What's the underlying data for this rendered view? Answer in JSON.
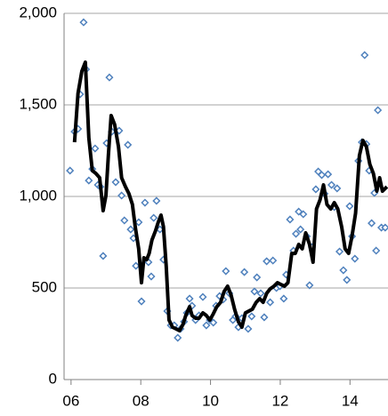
{
  "chart_data": {
    "type": "scatter",
    "xlim": [
      5.8,
      15.09
    ],
    "xticks": [
      {
        "value": 6,
        "label": "06"
      },
      {
        "value": 8,
        "label": "08"
      },
      {
        "value": 10,
        "label": "10"
      },
      {
        "value": 12,
        "label": "12"
      },
      {
        "value": 14,
        "label": "14"
      }
    ],
    "ylim": [
      0,
      2000
    ],
    "yticks": [
      0,
      500,
      {
        "value": 1000,
        "label": "1,000"
      },
      {
        "value": 1500,
        "label": "1,500"
      },
      {
        "value": 2000,
        "label": "2,000"
      }
    ],
    "grid": true,
    "series": [
      {
        "style": "marker",
        "color": "#4f81bd",
        "x": [
          5.97,
          6.1,
          6.2,
          6.26,
          6.36,
          6.43,
          6.51,
          6.61,
          6.69,
          6.77,
          6.84,
          6.92,
          7.02,
          7.1,
          7.17,
          7.28,
          7.38,
          7.45,
          7.53,
          7.63,
          7.71,
          7.79,
          7.86,
          7.94,
          8.02,
          8.12,
          8.22,
          8.3,
          8.37,
          8.45,
          8.55,
          8.65,
          8.76,
          8.86,
          8.96,
          9.06,
          9.14,
          9.24,
          9.32,
          9.4,
          9.47,
          9.57,
          9.67,
          9.78,
          9.88,
          9.98,
          10.08,
          10.16,
          10.26,
          10.36,
          10.44,
          10.54,
          10.64,
          10.72,
          10.8,
          10.9,
          10.97,
          11.08,
          11.18,
          11.26,
          11.33,
          11.44,
          11.54,
          11.61,
          11.71,
          11.79,
          11.89,
          11.99,
          12.1,
          12.17,
          12.28,
          12.38,
          12.45,
          12.53,
          12.58,
          12.66,
          12.76,
          12.84,
          12.91,
          13.02,
          13.09,
          13.19,
          13.27,
          13.37,
          13.47,
          13.55,
          13.63,
          13.7,
          13.81,
          13.91,
          13.99,
          14.06,
          14.14,
          14.24,
          14.34,
          14.42,
          14.47,
          14.55,
          14.62,
          14.7,
          14.75,
          14.8,
          14.9,
          15.01
        ],
        "values": [
          1141,
          1354,
          1369,
          1558,
          1951,
          1694,
          1087,
          1150,
          1262,
          1063,
          1053,
          675,
          1291,
          1650,
          1354,
          1078,
          1359,
          1005,
          869,
          1282,
          820,
          772,
          621,
          859,
          427,
          966,
          641,
          563,
          883,
          976,
          820,
          655,
          374,
          296,
          296,
          228,
          277,
          316,
          364,
          442,
          403,
          325,
          350,
          451,
          296,
          325,
          311,
          403,
          456,
          437,
          592,
          471,
          325,
          345,
          286,
          335,
          587,
          277,
          345,
          481,
          558,
          471,
          340,
          646,
          422,
          650,
          500,
          510,
          442,
          573,
          874,
          704,
          796,
          917,
          820,
          903,
          782,
          515,
          723,
          1039,
          1136,
          1117,
          1015,
          1121,
          1063,
          942,
          1044,
          699,
          597,
          544,
          947,
          782,
          660,
          1194,
          1296,
          1772,
          1286,
          1141,
          854,
          1019,
          704,
          1471,
          830,
          830
        ]
      },
      {
        "style": "line",
        "color": "#000000",
        "x": [
          6.1,
          6.2,
          6.31,
          6.41,
          6.51,
          6.61,
          6.71,
          6.82,
          6.92,
          7.0,
          7.07,
          7.15,
          7.25,
          7.36,
          7.45,
          7.56,
          7.66,
          7.76,
          7.84,
          7.94,
          8.02,
          8.09,
          8.17,
          8.24,
          8.32,
          8.42,
          8.5,
          8.58,
          8.65,
          8.73,
          8.81,
          8.91,
          9.01,
          9.11,
          9.21,
          9.29,
          9.4,
          9.47,
          9.57,
          9.67,
          9.78,
          9.88,
          9.98,
          10.08,
          10.18,
          10.29,
          10.39,
          10.49,
          10.59,
          10.69,
          10.8,
          10.9,
          11.0,
          11.1,
          11.2,
          11.31,
          11.41,
          11.51,
          11.61,
          11.71,
          11.82,
          11.92,
          12.02,
          12.12,
          12.22,
          12.33,
          12.43,
          12.53,
          12.63,
          12.73,
          12.84,
          12.94,
          13.04,
          13.14,
          13.24,
          13.34,
          13.45,
          13.55,
          13.65,
          13.76,
          13.86,
          13.96,
          14.06,
          14.16,
          14.27,
          14.37,
          14.47,
          14.57,
          14.67,
          14.77,
          14.85,
          14.93,
          15.06
        ],
        "values": [
          1296,
          1563,
          1684,
          1733,
          1320,
          1141,
          1126,
          1102,
          922,
          1005,
          1223,
          1442,
          1393,
          1272,
          1102,
          1053,
          1015,
          956,
          835,
          714,
          529,
          665,
          655,
          689,
          762,
          811,
          859,
          898,
          835,
          617,
          325,
          286,
          277,
          267,
          301,
          350,
          398,
          350,
          335,
          335,
          364,
          350,
          325,
          359,
          398,
          422,
          481,
          510,
          461,
          384,
          316,
          286,
          364,
          374,
          384,
          422,
          442,
          422,
          471,
          495,
          510,
          529,
          519,
          510,
          529,
          689,
          689,
          738,
          714,
          801,
          738,
          641,
          932,
          981,
          1063,
          956,
          932,
          966,
          932,
          835,
          714,
          689,
          786,
          908,
          1223,
          1306,
          1272,
          1175,
          1126,
          1029,
          1102,
          1029,
          1053
        ]
      }
    ]
  }
}
